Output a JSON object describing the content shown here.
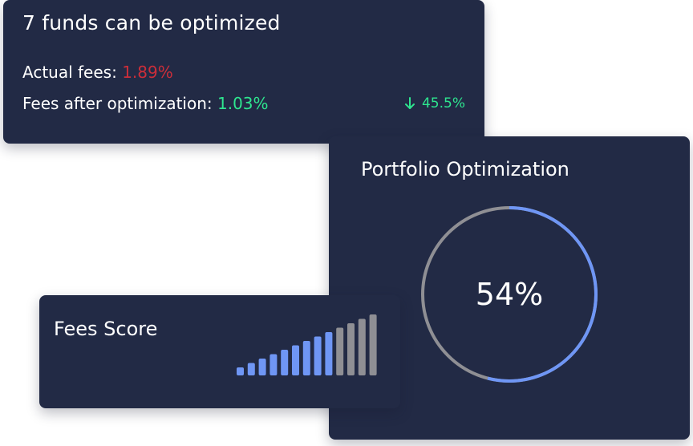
{
  "fees_card": {
    "title": "7 funds can be optimized",
    "actual_fees_label": "Actual fees:",
    "actual_fees_value": "1.89%",
    "after_fees_label": "Fees after optimization:",
    "after_fees_value": "1.03%",
    "reduction_icon": "arrow-down-icon",
    "reduction_value": "45.5%"
  },
  "portfolio_card": {
    "title": "Portfolio Optimization",
    "progress_label": "54%",
    "progress_fraction": 0.54
  },
  "score_card": {
    "title": "Fees Score",
    "bar_count": 13,
    "active_bars": 9
  },
  "colors": {
    "card_bg": "#222a45",
    "accent_blue": "#6f96f5",
    "inactive_gray": "#8f8f94",
    "fee_red": "#cc2e3a",
    "fee_green": "#2ee58f"
  }
}
